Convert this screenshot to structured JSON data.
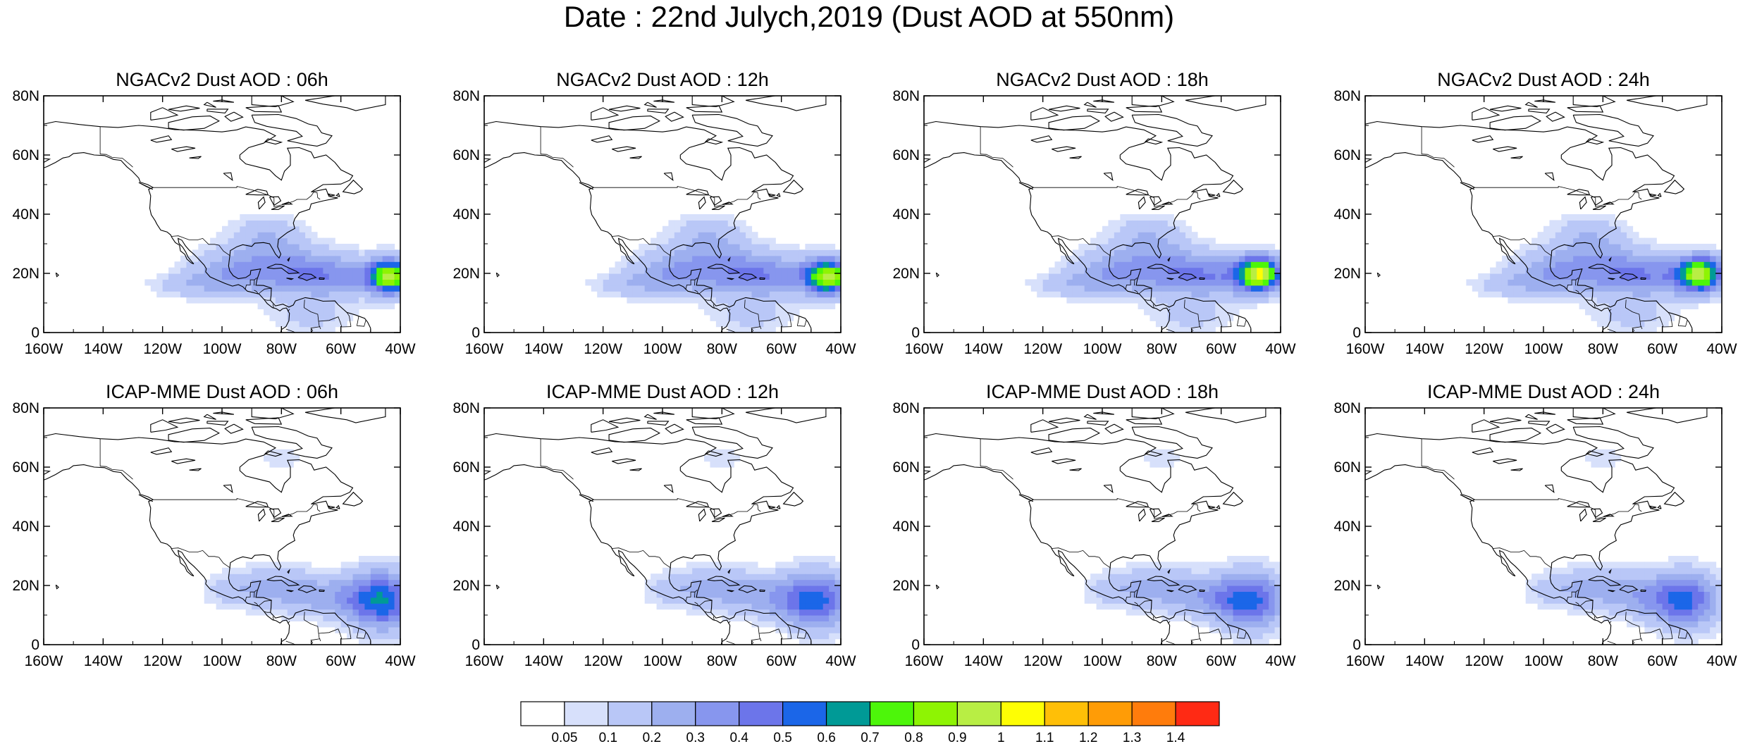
{
  "title": "Date : 22nd Julych,2019 (Dust AOD at 550nm)",
  "map": {
    "lon_range": [
      -160,
      -40
    ],
    "lat_range": [
      0,
      80
    ],
    "lon_ticks": [
      -160,
      -140,
      -120,
      -100,
      -80,
      -60,
      -40
    ],
    "lon_tick_labels": [
      "160W",
      "140W",
      "120W",
      "100W",
      "80W",
      "60W",
      "40W"
    ],
    "lat_ticks": [
      0,
      20,
      40,
      60,
      80
    ],
    "lat_tick_labels": [
      "0",
      "20N",
      "40N",
      "60N",
      "80N"
    ]
  },
  "panels": [
    {
      "title": "NGACv2 Dust AOD : 06h",
      "model": "ngac",
      "peak_lon": -43,
      "peak_lat": 19,
      "peak_aod": 0.85
    },
    {
      "title": "NGACv2 Dust AOD : 12h",
      "model": "ngac",
      "peak_lon": -44,
      "peak_lat": 19,
      "peak_aod": 0.85
    },
    {
      "title": "NGACv2 Dust AOD : 18h",
      "model": "ngac",
      "peak_lon": -47,
      "peak_lat": 20,
      "peak_aod": 0.88
    },
    {
      "title": "NGACv2 Dust AOD : 24h",
      "model": "ngac",
      "peak_lon": -47,
      "peak_lat": 20,
      "peak_aod": 0.82
    },
    {
      "title": "ICAP-MME Dust AOD : 06h",
      "model": "icap",
      "peak_lon": -46,
      "peak_lat": 15,
      "peak_aod": 0.55
    },
    {
      "title": "ICAP-MME Dust AOD : 12h",
      "model": "icap",
      "peak_lon": -48,
      "peak_lat": 15,
      "peak_aod": 0.48
    },
    {
      "title": "ICAP-MME Dust AOD : 18h",
      "model": "icap",
      "peak_lon": -50,
      "peak_lat": 15,
      "peak_aod": 0.47
    },
    {
      "title": "ICAP-MME Dust AOD : 24h",
      "model": "icap",
      "peak_lon": -52,
      "peak_lat": 15,
      "peak_aod": 0.42
    }
  ],
  "colorbar": {
    "levels": [
      "0.05",
      "0.1",
      "0.2",
      "0.3",
      "0.4",
      "0.5",
      "0.6",
      "0.7",
      "0.8",
      "0.9",
      "1",
      "1.1",
      "1.2",
      "1.3",
      "1.4"
    ],
    "colors": [
      "#ffffff",
      "#d7e0fb",
      "#b9c7f7",
      "#9dafef",
      "#8796ee",
      "#6c75ea",
      "#1b66e8",
      "#009a96",
      "#4df60a",
      "#8ef403",
      "#b8ee44",
      "#fefe04",
      "#ffbf07",
      "#ff9c06",
      "#ff7c0c",
      "#ff2a14"
    ]
  }
}
